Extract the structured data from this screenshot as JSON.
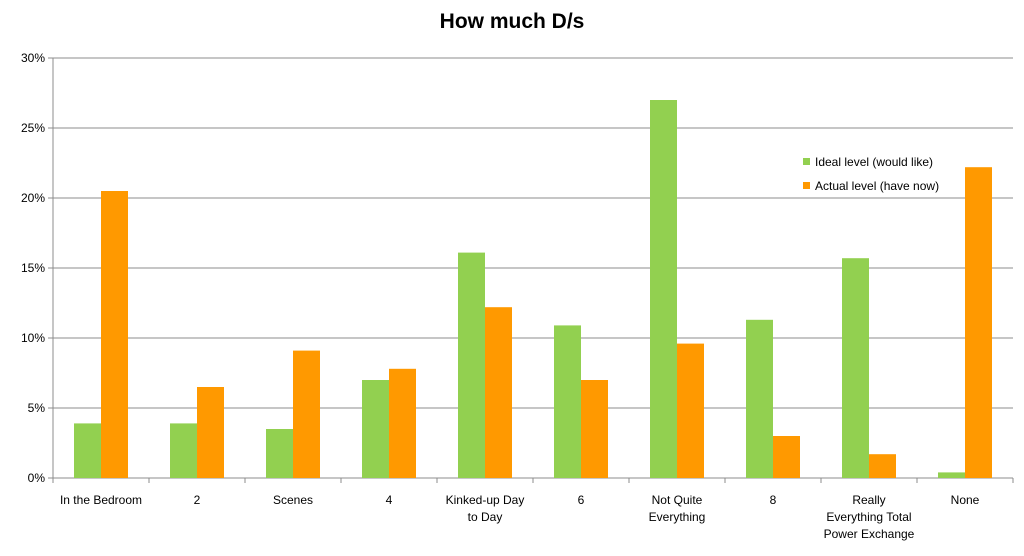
{
  "chart_data": {
    "type": "bar",
    "title": "How much D/s",
    "xlabel": "",
    "ylabel": "",
    "categories": [
      [
        "In the Bedroom"
      ],
      [
        "2"
      ],
      [
        "Scenes"
      ],
      [
        "4"
      ],
      [
        "Kinked-up Day",
        "to Day"
      ],
      [
        "6"
      ],
      [
        "Not Quite",
        "Everything"
      ],
      [
        "8"
      ],
      [
        "Really",
        "Everything Total",
        "Power Exchange"
      ],
      [
        "None"
      ]
    ],
    "series": [
      {
        "name": "Ideal level (would like)",
        "color": "#92d050",
        "values": [
          3.9,
          3.9,
          3.5,
          7.0,
          16.1,
          10.9,
          27.0,
          11.3,
          15.7,
          0.4
        ]
      },
      {
        "name": "Actual level (have now)",
        "color": "#ff9900",
        "values": [
          20.5,
          6.5,
          9.1,
          7.8,
          12.2,
          7.0,
          9.6,
          3.0,
          1.7,
          22.2
        ]
      }
    ],
    "ylim": [
      0,
      30
    ],
    "yticks": [
      "0%",
      "5%",
      "10%",
      "15%",
      "20%",
      "25%",
      "30%"
    ],
    "grid": true,
    "legend_position": "top-right"
  }
}
